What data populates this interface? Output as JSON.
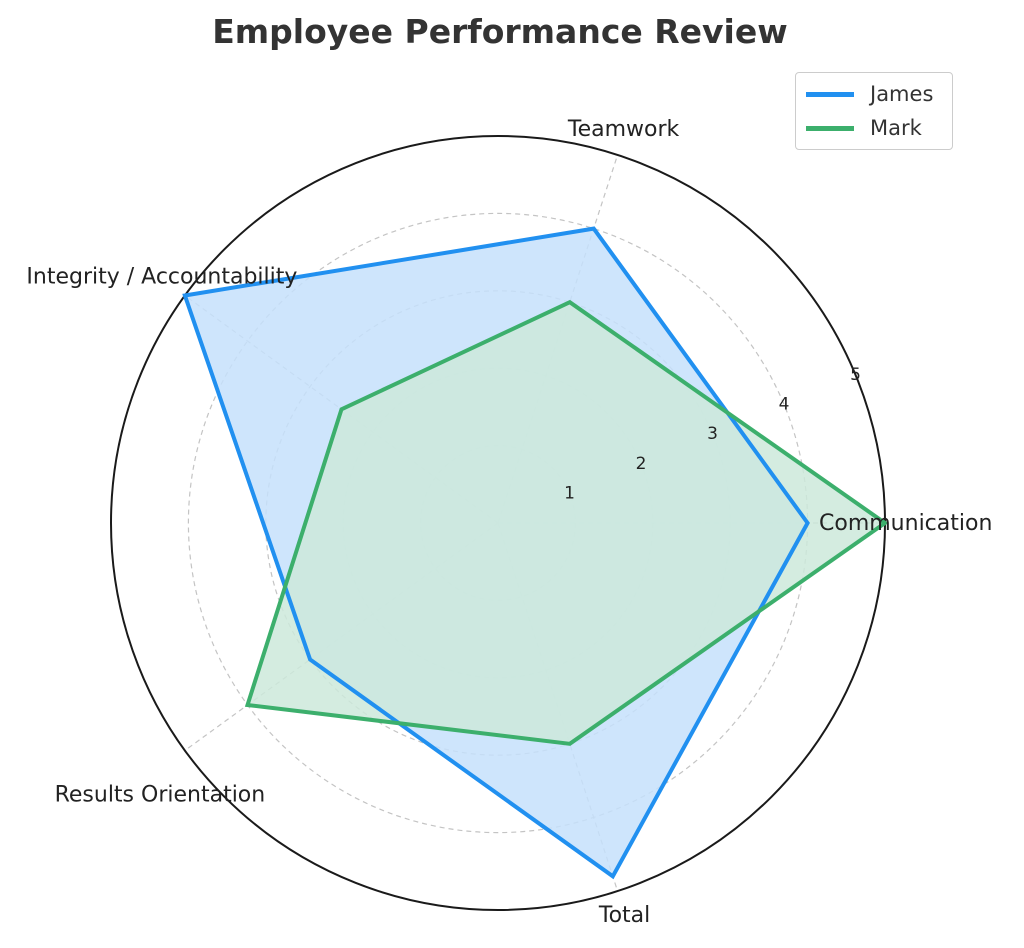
{
  "chart_data": {
    "type": "radar",
    "title": "Employee Performance Review",
    "categories": [
      "Communication",
      "Teamwork",
      "Integrity / Accountability",
      "Results Orientation",
      "Total"
    ],
    "series": [
      {
        "name": "James",
        "values": [
          4.0,
          4.0,
          5.0,
          3.0,
          4.8
        ],
        "color": "#2190f0",
        "fill": "#c5e1fb"
      },
      {
        "name": "Mark",
        "values": [
          5.0,
          3.0,
          2.5,
          4.0,
          3.0
        ],
        "color": "#3caf6c",
        "fill": "#cce9da"
      }
    ],
    "rlim": [
      0,
      5
    ],
    "rticks": [
      "1",
      "2",
      "3",
      "4",
      "5"
    ],
    "grid": true,
    "legend_position": "top-right"
  }
}
